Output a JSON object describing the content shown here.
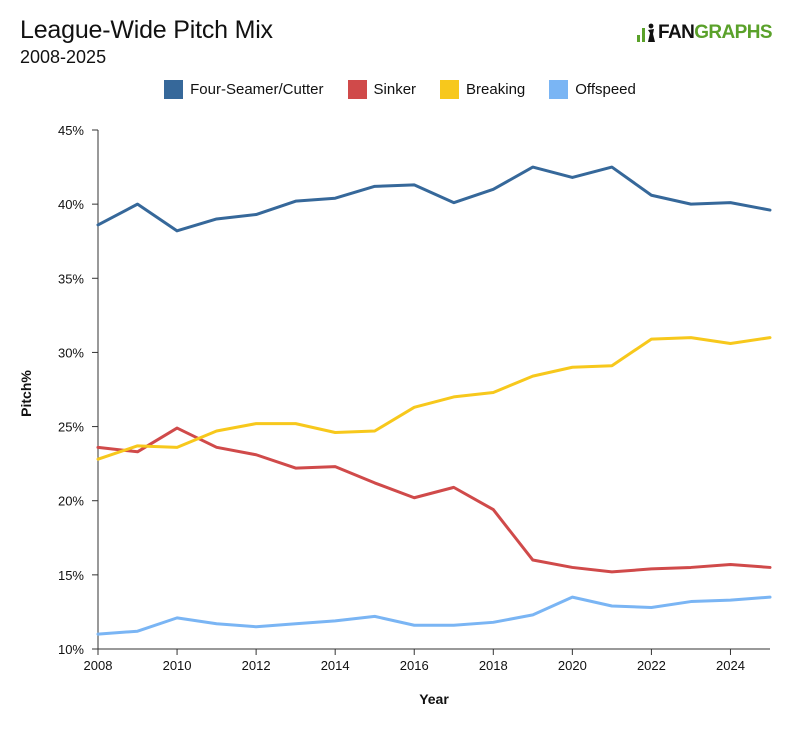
{
  "header": {
    "title": "League-Wide Pitch Mix",
    "subtitle": "2008-2025",
    "logo_fan": "FAN",
    "logo_graphs": "GRAPHS"
  },
  "colors": {
    "Four-Seamer/Cutter": "#36689a",
    "Sinker": "#d04a4a",
    "Breaking": "#f7c81c",
    "Offspeed": "#7ab5f4",
    "logo_green": "#5aa12a"
  },
  "chart_data": {
    "type": "line",
    "xlabel": "Year",
    "ylabel": "Pitch%",
    "xlim": [
      2008,
      2025
    ],
    "ylim": [
      10,
      45
    ],
    "x_ticks": [
      2008,
      2010,
      2012,
      2014,
      2016,
      2018,
      2020,
      2022,
      2024
    ],
    "y_ticks": [
      "10%",
      "15%",
      "20%",
      "25%",
      "30%",
      "35%",
      "40%",
      "45%"
    ],
    "y_tick_values": [
      10,
      15,
      20,
      25,
      30,
      35,
      40,
      45
    ],
    "grid": false,
    "legend_position": "top",
    "x": [
      2008,
      2009,
      2010,
      2011,
      2012,
      2013,
      2014,
      2015,
      2016,
      2017,
      2018,
      2019,
      2020,
      2021,
      2022,
      2023,
      2024,
      2025
    ],
    "series": [
      {
        "name": "Four-Seamer/Cutter",
        "values": [
          38.6,
          40.0,
          38.2,
          39.0,
          39.3,
          40.2,
          40.4,
          41.2,
          41.3,
          40.1,
          41.0,
          42.5,
          41.8,
          42.5,
          40.6,
          40.0,
          40.1,
          39.6
        ]
      },
      {
        "name": "Sinker",
        "values": [
          23.6,
          23.3,
          24.9,
          23.6,
          23.1,
          22.2,
          22.3,
          21.2,
          20.2,
          20.9,
          19.4,
          16.0,
          15.5,
          15.2,
          15.4,
          15.5,
          15.7,
          15.5
        ]
      },
      {
        "name": "Breaking",
        "values": [
          22.8,
          23.7,
          23.6,
          24.7,
          25.2,
          25.2,
          24.6,
          24.7,
          26.3,
          27.0,
          27.3,
          28.4,
          29.0,
          29.1,
          30.9,
          31.0,
          30.6,
          31.0
        ]
      },
      {
        "name": "Offspeed",
        "values": [
          11.0,
          11.2,
          12.1,
          11.7,
          11.5,
          11.7,
          11.9,
          12.2,
          11.6,
          11.6,
          11.8,
          12.3,
          13.5,
          12.9,
          12.8,
          13.2,
          13.3,
          13.5
        ]
      }
    ]
  }
}
